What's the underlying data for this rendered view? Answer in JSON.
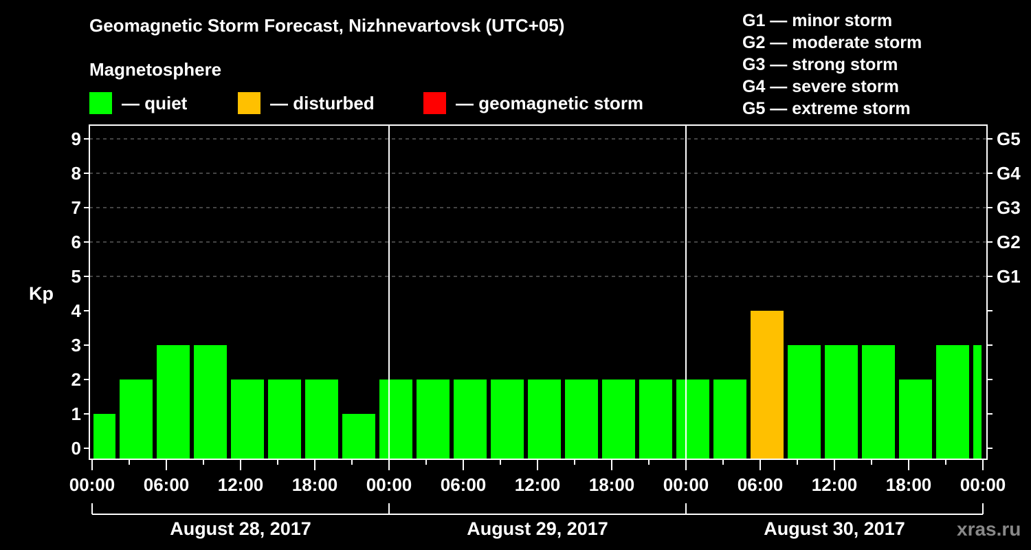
{
  "title": "Geomagnetic Storm Forecast, Nizhnevartovsk (UTC+05)",
  "subtitle": "Magnetosphere",
  "legend": [
    {
      "label": "— quiet",
      "color": "#00ff00"
    },
    {
      "label": "— disturbed",
      "color": "#ffc000"
    },
    {
      "label": "— geomagnetic storm",
      "color": "#ff0000"
    }
  ],
  "g_scale_legend": [
    "G1 — minor storm",
    "G2 — moderate storm",
    "G3 — strong storm",
    "G4 — severe storm",
    "G5 — extreme storm"
  ],
  "y_axis_label": "Kp",
  "watermark": "xras.ru",
  "chart_data": {
    "type": "bar",
    "title": "Geomagnetic Storm Forecast, Nizhnevartovsk (UTC+05)",
    "xlabel": "",
    "ylabel": "Kp",
    "ylim": [
      -0.3,
      9.6
    ],
    "yticks": [
      0,
      1,
      2,
      3,
      4,
      5,
      6,
      7,
      8,
      9
    ],
    "right_axis": {
      "ticks": [
        5,
        6,
        7,
        8,
        9
      ],
      "labels": [
        "G1",
        "G2",
        "G3",
        "G4",
        "G5"
      ]
    },
    "grid": "dashed horizontal at Kp 5-9",
    "xtick_labels": [
      "00:00",
      "06:00",
      "12:00",
      "18:00",
      "00:00",
      "06:00",
      "12:00",
      "18:00",
      "00:00",
      "06:00",
      "12:00",
      "18:00",
      "00:00"
    ],
    "day_labels": [
      "August 28, 2017",
      "August 29, 2017",
      "August 30, 2017"
    ],
    "interval_hours": 3,
    "categories": [
      "Aug 28 00:00",
      "Aug 28 03:00",
      "Aug 28 06:00",
      "Aug 28 09:00",
      "Aug 28 12:00",
      "Aug 28 15:00",
      "Aug 28 18:00",
      "Aug 28 21:00",
      "Aug 29 00:00",
      "Aug 29 03:00",
      "Aug 29 06:00",
      "Aug 29 09:00",
      "Aug 29 12:00",
      "Aug 29 15:00",
      "Aug 29 18:00",
      "Aug 29 21:00",
      "Aug 30 00:00",
      "Aug 30 03:00",
      "Aug 30 06:00",
      "Aug 30 09:00",
      "Aug 30 12:00",
      "Aug 30 15:00",
      "Aug 30 18:00",
      "Aug 30 21:00",
      "Aug 31 00:00"
    ],
    "values": [
      1,
      2,
      3,
      3,
      2,
      2,
      2,
      1,
      2,
      2,
      2,
      2,
      2,
      2,
      2,
      2,
      2,
      2,
      4,
      3,
      3,
      3,
      2,
      3,
      3
    ],
    "colors": {
      "quiet": "#00ff00",
      "disturbed": "#ffc000",
      "storm": "#ff0000"
    },
    "legend_position": "top"
  }
}
